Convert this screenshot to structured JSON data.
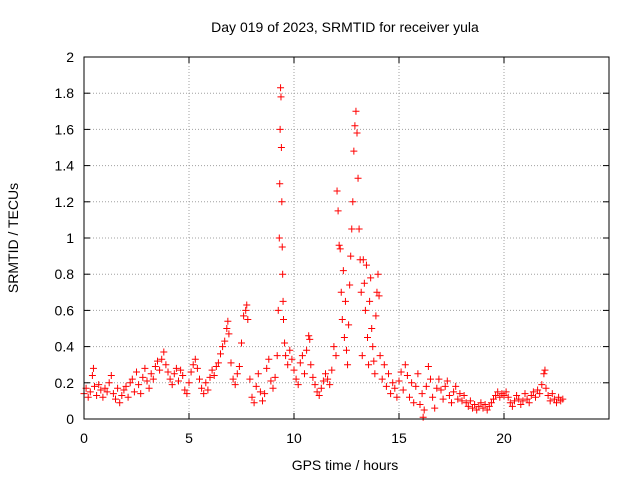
{
  "chart_data": {
    "type": "scatter",
    "title": "Day 019 of 2023, SRMTID for receiver yula",
    "xlabel": "GPS time / hours",
    "ylabel": "SRMTID / TECUs",
    "xlim": [
      0,
      25
    ],
    "ylim": [
      0,
      2
    ],
    "x_ticks": [
      0,
      5,
      10,
      15,
      20
    ],
    "x_tick_labels": [
      "0",
      "5",
      "10",
      "15",
      "20"
    ],
    "y_ticks": [
      0,
      0.2,
      0.4,
      0.6,
      0.8,
      1,
      1.2,
      1.4,
      1.6,
      1.8,
      2
    ],
    "y_tick_labels": [
      "0",
      "0.2",
      "0.4",
      "0.6",
      "0.8",
      "1",
      "1.2",
      "1.4",
      "1.6",
      "1.8",
      "2"
    ],
    "grid": true,
    "marker": "+",
    "color": "#ff0000",
    "series": [
      {
        "name": "SRMTID",
        "points": [
          [
            0.0,
            0.14
          ],
          [
            0.1,
            0.17
          ],
          [
            0.2,
            0.12
          ],
          [
            0.3,
            0.15
          ],
          [
            0.4,
            0.24
          ],
          [
            0.45,
            0.28
          ],
          [
            0.5,
            0.18
          ],
          [
            0.6,
            0.13
          ],
          [
            0.7,
            0.19
          ],
          [
            0.8,
            0.16
          ],
          [
            0.9,
            0.12
          ],
          [
            1.0,
            0.17
          ],
          [
            1.1,
            0.15
          ],
          [
            1.2,
            0.2
          ],
          [
            1.3,
            0.24
          ],
          [
            1.4,
            0.14
          ],
          [
            1.5,
            0.11
          ],
          [
            1.6,
            0.17
          ],
          [
            1.7,
            0.09
          ],
          [
            1.8,
            0.13
          ],
          [
            1.9,
            0.16
          ],
          [
            2.0,
            0.18
          ],
          [
            2.1,
            0.12
          ],
          [
            2.2,
            0.2
          ],
          [
            2.3,
            0.22
          ],
          [
            2.4,
            0.15
          ],
          [
            2.5,
            0.26
          ],
          [
            2.6,
            0.19
          ],
          [
            2.7,
            0.14
          ],
          [
            2.8,
            0.23
          ],
          [
            2.9,
            0.28
          ],
          [
            3.0,
            0.21
          ],
          [
            3.1,
            0.17
          ],
          [
            3.2,
            0.25
          ],
          [
            3.3,
            0.22
          ],
          [
            3.4,
            0.29
          ],
          [
            3.5,
            0.32
          ],
          [
            3.6,
            0.27
          ],
          [
            3.7,
            0.33
          ],
          [
            3.8,
            0.37
          ],
          [
            3.9,
            0.3
          ],
          [
            4.0,
            0.26
          ],
          [
            4.1,
            0.22
          ],
          [
            4.2,
            0.19
          ],
          [
            4.3,
            0.25
          ],
          [
            4.4,
            0.28
          ],
          [
            4.5,
            0.21
          ],
          [
            4.6,
            0.27
          ],
          [
            4.7,
            0.24
          ],
          [
            4.8,
            0.16
          ],
          [
            4.9,
            0.14
          ],
          [
            5.0,
            0.2
          ],
          [
            5.1,
            0.26
          ],
          [
            5.2,
            0.3
          ],
          [
            5.3,
            0.33
          ],
          [
            5.4,
            0.28
          ],
          [
            5.5,
            0.22
          ],
          [
            5.6,
            0.17
          ],
          [
            5.7,
            0.14
          ],
          [
            5.8,
            0.2
          ],
          [
            5.9,
            0.16
          ],
          [
            6.0,
            0.23
          ],
          [
            6.1,
            0.27
          ],
          [
            6.2,
            0.24
          ],
          [
            6.3,
            0.29
          ],
          [
            6.4,
            0.31
          ],
          [
            6.5,
            0.36
          ],
          [
            6.6,
            0.4
          ],
          [
            6.7,
            0.43
          ],
          [
            6.8,
            0.5
          ],
          [
            6.85,
            0.54
          ],
          [
            6.9,
            0.47
          ],
          [
            7.0,
            0.31
          ],
          [
            7.1,
            0.22
          ],
          [
            7.2,
            0.19
          ],
          [
            7.3,
            0.25
          ],
          [
            7.4,
            0.29
          ],
          [
            7.5,
            0.42
          ],
          [
            7.6,
            0.57
          ],
          [
            7.7,
            0.6
          ],
          [
            7.75,
            0.63
          ],
          [
            7.8,
            0.55
          ],
          [
            7.9,
            0.22
          ],
          [
            8.0,
            0.12
          ],
          [
            8.1,
            0.09
          ],
          [
            8.2,
            0.18
          ],
          [
            8.3,
            0.25
          ],
          [
            8.4,
            0.15
          ],
          [
            8.5,
            0.1
          ],
          [
            8.6,
            0.14
          ],
          [
            8.7,
            0.28
          ],
          [
            8.8,
            0.33
          ],
          [
            8.9,
            0.21
          ],
          [
            9.0,
            0.17
          ],
          [
            9.1,
            0.23
          ],
          [
            9.2,
            0.35
          ],
          [
            9.25,
            0.6
          ],
          [
            9.3,
            1.0
          ],
          [
            9.32,
            1.3
          ],
          [
            9.34,
            1.6
          ],
          [
            9.36,
            1.83
          ],
          [
            9.38,
            1.78
          ],
          [
            9.4,
            1.5
          ],
          [
            9.42,
            1.2
          ],
          [
            9.44,
            0.95
          ],
          [
            9.46,
            0.8
          ],
          [
            9.48,
            0.65
          ],
          [
            9.5,
            0.55
          ],
          [
            9.55,
            0.42
          ],
          [
            9.6,
            0.35
          ],
          [
            9.7,
            0.3
          ],
          [
            9.8,
            0.38
          ],
          [
            9.9,
            0.33
          ],
          [
            10.0,
            0.27
          ],
          [
            10.1,
            0.22
          ],
          [
            10.2,
            0.19
          ],
          [
            10.3,
            0.31
          ],
          [
            10.4,
            0.35
          ],
          [
            10.5,
            0.25
          ],
          [
            10.6,
            0.38
          ],
          [
            10.7,
            0.46
          ],
          [
            10.75,
            0.44
          ],
          [
            10.8,
            0.3
          ],
          [
            10.9,
            0.23
          ],
          [
            11.0,
            0.19
          ],
          [
            11.1,
            0.15
          ],
          [
            11.2,
            0.13
          ],
          [
            11.3,
            0.17
          ],
          [
            11.4,
            0.21
          ],
          [
            11.5,
            0.25
          ],
          [
            11.6,
            0.22
          ],
          [
            11.7,
            0.19
          ],
          [
            11.8,
            0.27
          ],
          [
            11.9,
            0.4
          ],
          [
            12.0,
            0.35
          ],
          [
            12.05,
            1.26
          ],
          [
            12.1,
            1.15
          ],
          [
            12.15,
            0.96
          ],
          [
            12.2,
            0.94
          ],
          [
            12.25,
            0.7
          ],
          [
            12.3,
            0.55
          ],
          [
            12.35,
            0.82
          ],
          [
            12.4,
            0.45
          ],
          [
            12.45,
            0.65
          ],
          [
            12.5,
            0.38
          ],
          [
            12.55,
            0.3
          ],
          [
            12.6,
            0.52
          ],
          [
            12.65,
            0.74
          ],
          [
            12.7,
            0.9
          ],
          [
            12.75,
            1.05
          ],
          [
            12.8,
            1.2
          ],
          [
            12.85,
            1.48
          ],
          [
            12.9,
            1.62
          ],
          [
            12.95,
            1.7
          ],
          [
            13.0,
            1.58
          ],
          [
            13.05,
            1.33
          ],
          [
            13.1,
            1.05
          ],
          [
            13.15,
            0.88
          ],
          [
            13.2,
            0.7
          ],
          [
            13.25,
            0.35
          ],
          [
            13.3,
            0.88
          ],
          [
            13.35,
            0.75
          ],
          [
            13.4,
            0.6
          ],
          [
            13.45,
            0.85
          ],
          [
            13.5,
            0.45
          ],
          [
            13.55,
            0.3
          ],
          [
            13.6,
            0.65
          ],
          [
            13.65,
            0.78
          ],
          [
            13.7,
            0.5
          ],
          [
            13.75,
            0.4
          ],
          [
            13.8,
            0.32
          ],
          [
            13.85,
            0.25
          ],
          [
            13.9,
            0.57
          ],
          [
            13.95,
            0.7
          ],
          [
            14.0,
            0.8
          ],
          [
            14.05,
            0.68
          ],
          [
            14.1,
            0.35
          ],
          [
            14.2,
            0.22
          ],
          [
            14.3,
            0.3
          ],
          [
            14.4,
            0.18
          ],
          [
            14.5,
            0.25
          ],
          [
            14.6,
            0.14
          ],
          [
            14.7,
            0.2
          ],
          [
            14.8,
            0.17
          ],
          [
            14.9,
            0.12
          ],
          [
            15.0,
            0.21
          ],
          [
            15.1,
            0.26
          ],
          [
            15.2,
            0.16
          ],
          [
            15.3,
            0.3
          ],
          [
            15.4,
            0.24
          ],
          [
            15.5,
            0.12
          ],
          [
            15.6,
            0.2
          ],
          [
            15.7,
            0.09
          ],
          [
            15.8,
            0.18
          ],
          [
            15.9,
            0.25
          ],
          [
            16.0,
            0.08
          ],
          [
            16.1,
            0.14
          ],
          [
            16.15,
            0.01
          ],
          [
            16.2,
            0.05
          ],
          [
            16.3,
            0.18
          ],
          [
            16.4,
            0.29
          ],
          [
            16.5,
            0.22
          ],
          [
            16.6,
            0.12
          ],
          [
            16.7,
            0.06
          ],
          [
            16.8,
            0.17
          ],
          [
            16.9,
            0.22
          ],
          [
            17.0,
            0.16
          ],
          [
            17.1,
            0.11
          ],
          [
            17.2,
            0.18
          ],
          [
            17.3,
            0.21
          ],
          [
            17.4,
            0.13
          ],
          [
            17.5,
            0.09
          ],
          [
            17.6,
            0.15
          ],
          [
            17.7,
            0.18
          ],
          [
            17.8,
            0.11
          ],
          [
            17.9,
            0.14
          ],
          [
            18.0,
            0.1
          ],
          [
            18.1,
            0.13
          ],
          [
            18.2,
            0.09
          ],
          [
            18.3,
            0.07
          ],
          [
            18.4,
            0.1
          ],
          [
            18.5,
            0.06
          ],
          [
            18.6,
            0.08
          ],
          [
            18.7,
            0.05
          ],
          [
            18.8,
            0.07
          ],
          [
            18.9,
            0.09
          ],
          [
            19.0,
            0.06
          ],
          [
            19.1,
            0.08
          ],
          [
            19.2,
            0.05
          ],
          [
            19.3,
            0.07
          ],
          [
            19.4,
            0.09
          ],
          [
            19.5,
            0.11
          ],
          [
            19.6,
            0.13
          ],
          [
            19.7,
            0.15
          ],
          [
            19.8,
            0.12
          ],
          [
            19.9,
            0.14
          ],
          [
            20.0,
            0.13
          ],
          [
            20.1,
            0.15
          ],
          [
            20.2,
            0.12
          ],
          [
            20.3,
            0.09
          ],
          [
            20.4,
            0.07
          ],
          [
            20.5,
            0.1
          ],
          [
            20.6,
            0.13
          ],
          [
            20.7,
            0.11
          ],
          [
            20.8,
            0.08
          ],
          [
            20.9,
            0.1
          ],
          [
            21.0,
            0.14
          ],
          [
            21.1,
            0.11
          ],
          [
            21.2,
            0.09
          ],
          [
            21.3,
            0.13
          ],
          [
            21.4,
            0.15
          ],
          [
            21.5,
            0.12
          ],
          [
            21.6,
            0.16
          ],
          [
            21.7,
            0.14
          ],
          [
            21.8,
            0.19
          ],
          [
            21.9,
            0.25
          ],
          [
            21.95,
            0.27
          ],
          [
            22.0,
            0.17
          ],
          [
            22.1,
            0.13
          ],
          [
            22.2,
            0.1
          ],
          [
            22.3,
            0.14
          ],
          [
            22.4,
            0.11
          ],
          [
            22.5,
            0.09
          ],
          [
            22.6,
            0.12
          ],
          [
            22.7,
            0.1
          ],
          [
            22.8,
            0.11
          ]
        ]
      }
    ]
  }
}
